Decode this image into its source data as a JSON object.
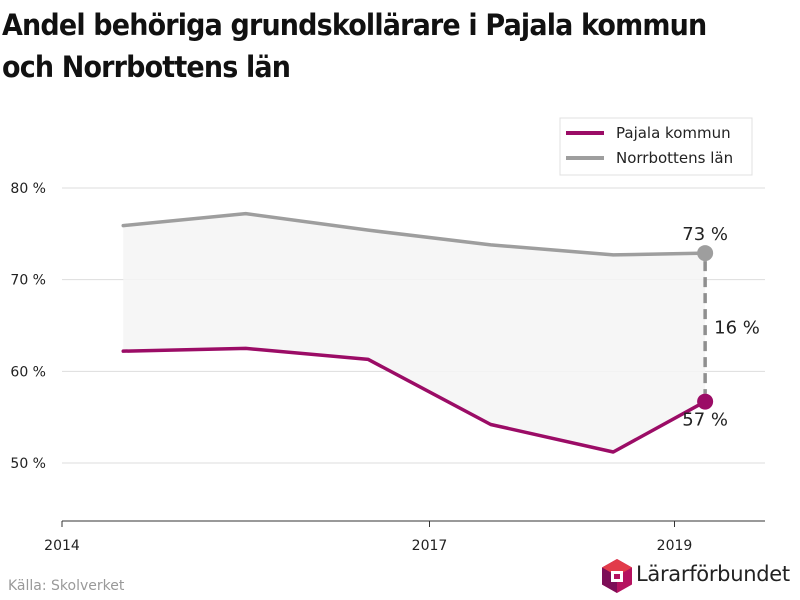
{
  "chart_data": {
    "type": "line",
    "title": "Andel behöriga grundskollärare i Pajala kommun och Norrbottens län",
    "x": [
      2014.5,
      2015.5,
      2016.5,
      2017.5,
      2018.5,
      2019.25
    ],
    "x_ticks": [
      2014,
      2017,
      2019
    ],
    "x_tick_labels": [
      "2014",
      "2017",
      "2019"
    ],
    "xlim": [
      2014,
      2019.75
    ],
    "ylim": [
      44,
      80
    ],
    "y_ticks": [
      50,
      60,
      70,
      80
    ],
    "y_tick_labels": [
      "50 %",
      "60 %",
      "70 %",
      "80 %"
    ],
    "grid": true,
    "legend_position": "top-right",
    "series": [
      {
        "name": "Pajala kommun",
        "color": "#9b0c66",
        "values": [
          62.2,
          62.5,
          61.3,
          54.2,
          51.2,
          56.7
        ]
      },
      {
        "name": "Norrbottens län",
        "color": "#9e9e9e",
        "values": [
          75.9,
          77.2,
          75.4,
          73.8,
          72.7,
          72.9
        ]
      }
    ],
    "annotations": {
      "top_value": "73 %",
      "bottom_value": "57 %",
      "difference": "16 %"
    }
  },
  "source": "Källa: Skolverket",
  "brand": {
    "name": "Lärarförbundet"
  }
}
